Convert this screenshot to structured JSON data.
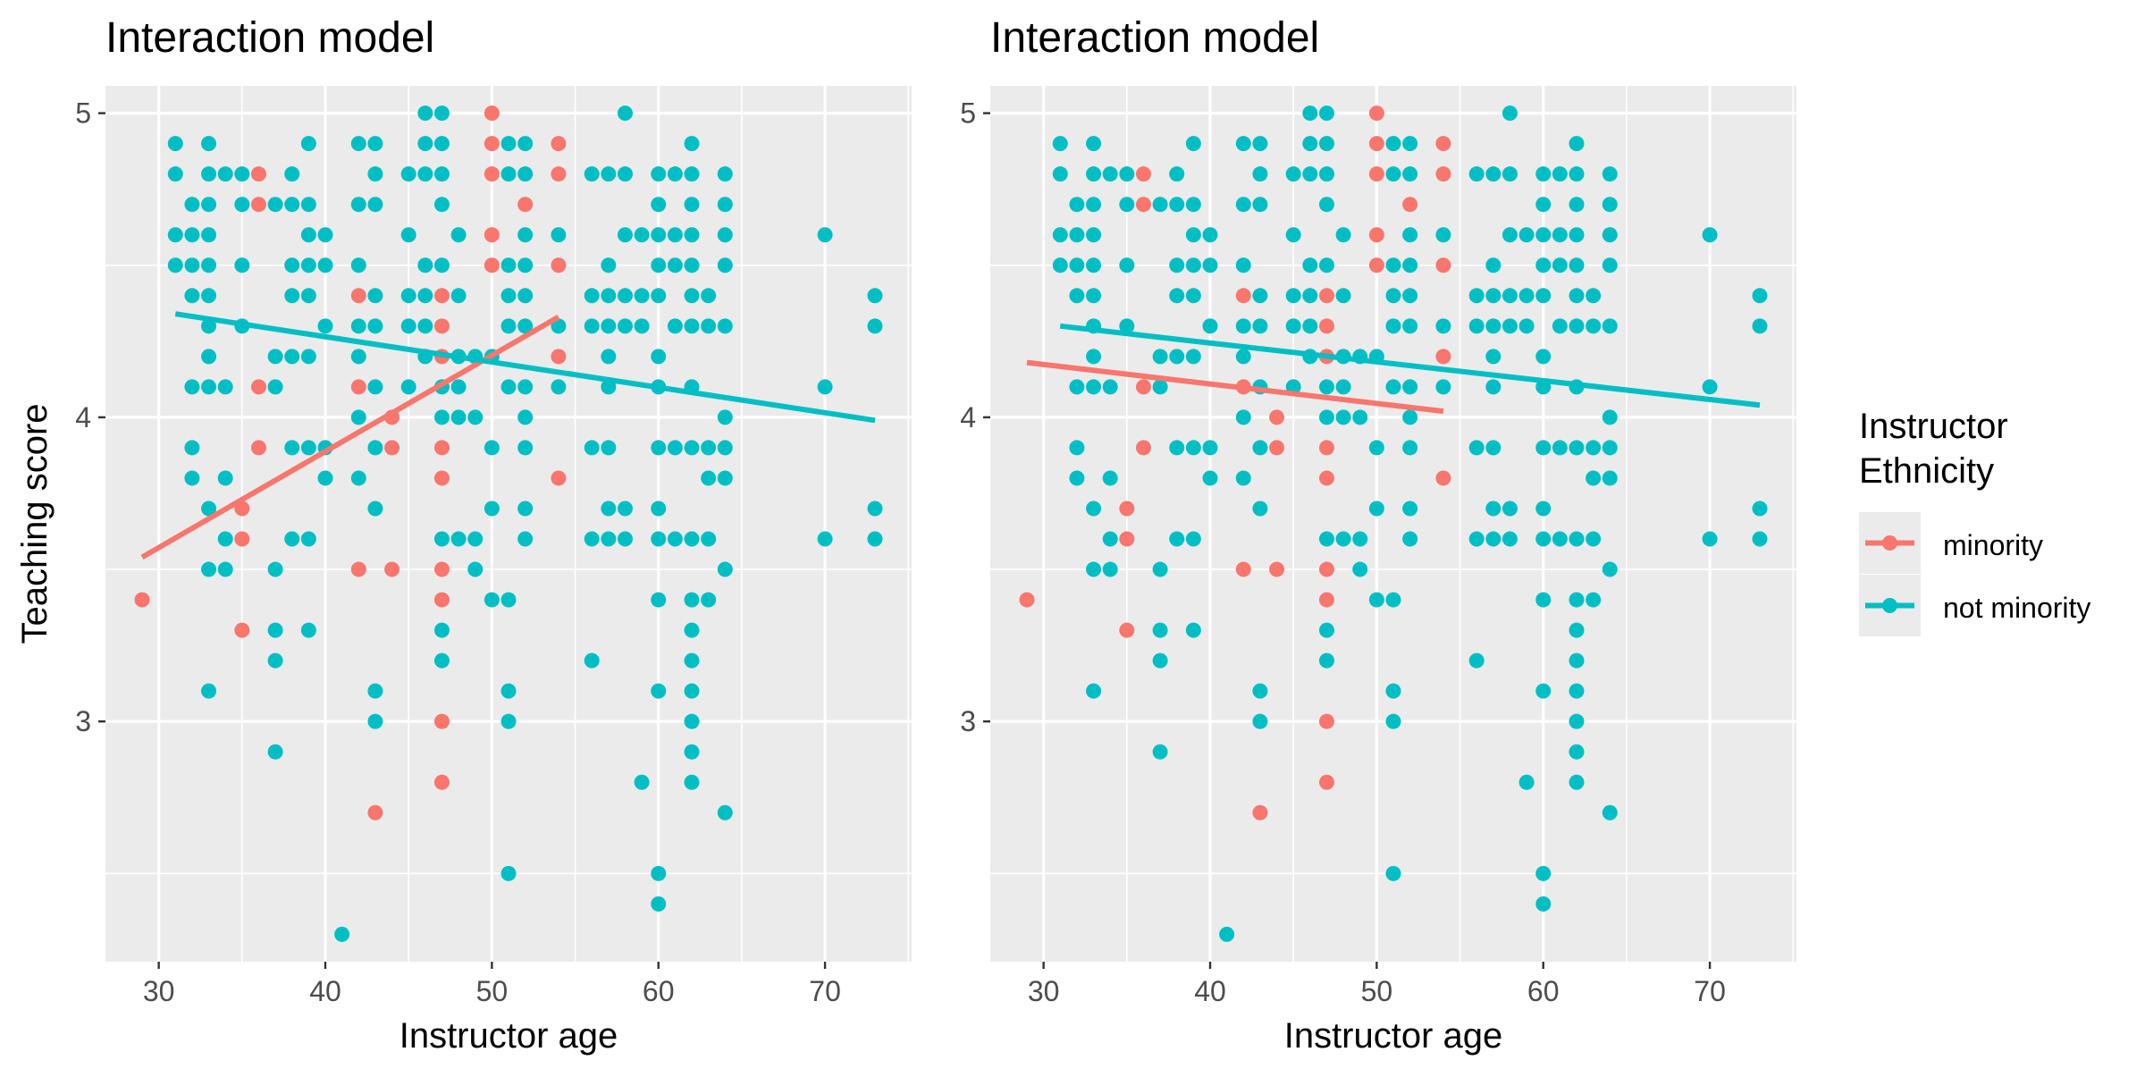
{
  "colors": {
    "minority": "#F8766D",
    "not_minority": "#00BFC4",
    "panel_bg": "#EBEBEB",
    "grid": "#FFFFFF",
    "text": "#000000",
    "tick_text": "#4D4D4D"
  },
  "legend": {
    "title_line1": "Instructor",
    "title_line2": "Ethnicity",
    "items": [
      {
        "key": "minority",
        "label": "minority"
      },
      {
        "key": "not_minority",
        "label": "not minority"
      }
    ]
  },
  "chart_data": [
    {
      "type": "scatter",
      "title": "Interaction model",
      "xlabel": "Instructor age",
      "ylabel": "Teaching score",
      "xlim": [
        26.8,
        75.2
      ],
      "ylim": [
        2.21,
        5.09
      ],
      "xticks": [
        30,
        40,
        50,
        60,
        70
      ],
      "yticks": [
        3,
        4,
        5
      ],
      "grid": true,
      "legend_position": "right",
      "series": [
        {
          "name": "minority",
          "color_key": "minority",
          "points": [
            [
              29,
              3.4
            ],
            [
              35,
              3.6
            ],
            [
              35,
              3.7
            ],
            [
              35,
              3.3
            ],
            [
              36,
              4.8
            ],
            [
              36,
              4.7
            ],
            [
              36,
              4.1
            ],
            [
              36,
              3.9
            ],
            [
              42,
              4.4
            ],
            [
              42,
              4.1
            ],
            [
              42,
              3.5
            ],
            [
              43,
              2.7
            ],
            [
              44,
              4.0
            ],
            [
              44,
              3.9
            ],
            [
              44,
              3.5
            ],
            [
              47,
              4.4
            ],
            [
              47,
              4.3
            ],
            [
              47,
              4.2
            ],
            [
              47,
              3.9
            ],
            [
              47,
              3.8
            ],
            [
              47,
              3.5
            ],
            [
              47,
              3.4
            ],
            [
              47,
              3.0
            ],
            [
              47,
              2.8
            ],
            [
              50,
              5.0
            ],
            [
              50,
              4.9
            ],
            [
              50,
              4.8
            ],
            [
              50,
              4.6
            ],
            [
              50,
              4.5
            ],
            [
              52,
              4.7
            ],
            [
              54,
              4.9
            ],
            [
              54,
              4.8
            ],
            [
              54,
              4.5
            ],
            [
              54,
              4.2
            ],
            [
              54,
              3.8
            ]
          ],
          "fit_line": [
            [
              29,
              3.54
            ],
            [
              54,
              4.33
            ]
          ]
        },
        {
          "name": "not minority",
          "color_key": "not_minority",
          "points": [
            [
              31,
              4.9
            ],
            [
              31,
              4.8
            ],
            [
              31,
              4.6
            ],
            [
              31,
              4.5
            ],
            [
              32,
              4.7
            ],
            [
              32,
              4.6
            ],
            [
              32,
              4.5
            ],
            [
              32,
              4.4
            ],
            [
              32,
              4.1
            ],
            [
              32,
              3.9
            ],
            [
              32,
              3.8
            ],
            [
              33,
              4.9
            ],
            [
              33,
              4.8
            ],
            [
              33,
              4.7
            ],
            [
              33,
              4.6
            ],
            [
              33,
              4.5
            ],
            [
              33,
              4.4
            ],
            [
              33,
              4.3
            ],
            [
              33,
              4.2
            ],
            [
              33,
              4.1
            ],
            [
              33,
              3.7
            ],
            [
              33,
              3.5
            ],
            [
              33,
              3.1
            ],
            [
              34,
              4.8
            ],
            [
              34,
              4.1
            ],
            [
              34,
              3.8
            ],
            [
              34,
              3.6
            ],
            [
              34,
              3.5
            ],
            [
              35,
              4.8
            ],
            [
              35,
              4.7
            ],
            [
              35,
              4.5
            ],
            [
              35,
              4.3
            ],
            [
              37,
              4.7
            ],
            [
              37,
              4.2
            ],
            [
              37,
              4.1
            ],
            [
              37,
              3.5
            ],
            [
              37,
              3.3
            ],
            [
              37,
              3.2
            ],
            [
              37,
              2.9
            ],
            [
              38,
              4.8
            ],
            [
              38,
              4.7
            ],
            [
              38,
              4.5
            ],
            [
              38,
              4.4
            ],
            [
              38,
              4.2
            ],
            [
              38,
              3.9
            ],
            [
              38,
              3.6
            ],
            [
              39,
              4.9
            ],
            [
              39,
              4.7
            ],
            [
              39,
              4.6
            ],
            [
              39,
              4.5
            ],
            [
              39,
              4.4
            ],
            [
              39,
              4.2
            ],
            [
              39,
              3.9
            ],
            [
              39,
              3.6
            ],
            [
              39,
              3.3
            ],
            [
              40,
              4.6
            ],
            [
              40,
              4.5
            ],
            [
              40,
              4.3
            ],
            [
              40,
              3.9
            ],
            [
              40,
              3.8
            ],
            [
              41,
              2.3
            ],
            [
              42,
              4.9
            ],
            [
              42,
              4.7
            ],
            [
              42,
              4.5
            ],
            [
              42,
              4.3
            ],
            [
              42,
              4.2
            ],
            [
              42,
              4.0
            ],
            [
              42,
              3.8
            ],
            [
              43,
              4.9
            ],
            [
              43,
              4.8
            ],
            [
              43,
              4.7
            ],
            [
              43,
              4.4
            ],
            [
              43,
              4.3
            ],
            [
              43,
              4.1
            ],
            [
              43,
              3.9
            ],
            [
              43,
              3.7
            ],
            [
              43,
              3.1
            ],
            [
              43,
              3.0
            ],
            [
              45,
              4.8
            ],
            [
              45,
              4.6
            ],
            [
              45,
              4.4
            ],
            [
              45,
              4.3
            ],
            [
              45,
              4.1
            ],
            [
              46,
              5.0
            ],
            [
              46,
              4.9
            ],
            [
              46,
              4.8
            ],
            [
              46,
              4.5
            ],
            [
              46,
              4.4
            ],
            [
              46,
              4.3
            ],
            [
              46,
              4.2
            ],
            [
              47,
              5.0
            ],
            [
              47,
              4.9
            ],
            [
              47,
              4.8
            ],
            [
              47,
              4.7
            ],
            [
              47,
              4.5
            ],
            [
              47,
              4.1
            ],
            [
              47,
              4.0
            ],
            [
              47,
              3.6
            ],
            [
              47,
              3.3
            ],
            [
              47,
              3.2
            ],
            [
              48,
              4.6
            ],
            [
              48,
              4.4
            ],
            [
              48,
              4.2
            ],
            [
              48,
              4.1
            ],
            [
              48,
              4.0
            ],
            [
              48,
              3.6
            ],
            [
              49,
              4.2
            ],
            [
              49,
              4.0
            ],
            [
              49,
              3.6
            ],
            [
              49,
              3.5
            ],
            [
              50,
              4.2
            ],
            [
              50,
              3.9
            ],
            [
              50,
              3.7
            ],
            [
              50,
              3.4
            ],
            [
              51,
              4.9
            ],
            [
              51,
              4.8
            ],
            [
              51,
              4.5
            ],
            [
              51,
              4.4
            ],
            [
              51,
              4.3
            ],
            [
              51,
              4.1
            ],
            [
              51,
              3.4
            ],
            [
              51,
              3.1
            ],
            [
              51,
              3.0
            ],
            [
              51,
              2.5
            ],
            [
              52,
              4.9
            ],
            [
              52,
              4.8
            ],
            [
              52,
              4.6
            ],
            [
              52,
              4.5
            ],
            [
              52,
              4.4
            ],
            [
              52,
              4.3
            ],
            [
              52,
              4.1
            ],
            [
              52,
              4.0
            ],
            [
              52,
              3.9
            ],
            [
              52,
              3.7
            ],
            [
              52,
              3.6
            ],
            [
              54,
              4.6
            ],
            [
              54,
              4.3
            ],
            [
              54,
              4.1
            ],
            [
              56,
              4.8
            ],
            [
              56,
              4.4
            ],
            [
              56,
              4.3
            ],
            [
              56,
              3.9
            ],
            [
              56,
              3.6
            ],
            [
              56,
              3.2
            ],
            [
              57,
              4.8
            ],
            [
              57,
              4.5
            ],
            [
              57,
              4.4
            ],
            [
              57,
              4.3
            ],
            [
              57,
              4.2
            ],
            [
              57,
              4.1
            ],
            [
              57,
              3.9
            ],
            [
              57,
              3.7
            ],
            [
              57,
              3.6
            ],
            [
              58,
              5.0
            ],
            [
              58,
              4.8
            ],
            [
              58,
              4.6
            ],
            [
              58,
              4.4
            ],
            [
              58,
              4.3
            ],
            [
              58,
              3.7
            ],
            [
              58,
              3.6
            ],
            [
              59,
              4.6
            ],
            [
              59,
              4.4
            ],
            [
              59,
              4.3
            ],
            [
              59,
              2.8
            ],
            [
              60,
              4.8
            ],
            [
              60,
              4.7
            ],
            [
              60,
              4.6
            ],
            [
              60,
              4.5
            ],
            [
              60,
              4.4
            ],
            [
              60,
              4.2
            ],
            [
              60,
              4.1
            ],
            [
              60,
              3.9
            ],
            [
              60,
              3.7
            ],
            [
              60,
              3.6
            ],
            [
              60,
              3.4
            ],
            [
              60,
              3.1
            ],
            [
              60,
              2.5
            ],
            [
              60,
              2.4
            ],
            [
              61,
              4.8
            ],
            [
              61,
              4.6
            ],
            [
              61,
              4.5
            ],
            [
              61,
              4.3
            ],
            [
              61,
              3.9
            ],
            [
              61,
              3.6
            ],
            [
              62,
              4.9
            ],
            [
              62,
              4.8
            ],
            [
              62,
              4.7
            ],
            [
              62,
              4.6
            ],
            [
              62,
              4.5
            ],
            [
              62,
              4.4
            ],
            [
              62,
              4.3
            ],
            [
              62,
              4.1
            ],
            [
              62,
              3.9
            ],
            [
              62,
              3.6
            ],
            [
              62,
              3.4
            ],
            [
              62,
              3.3
            ],
            [
              62,
              3.2
            ],
            [
              62,
              3.1
            ],
            [
              62,
              3.0
            ],
            [
              62,
              2.9
            ],
            [
              62,
              2.8
            ],
            [
              63,
              4.4
            ],
            [
              63,
              4.3
            ],
            [
              63,
              3.9
            ],
            [
              63,
              3.8
            ],
            [
              63,
              3.6
            ],
            [
              63,
              3.4
            ],
            [
              64,
              4.8
            ],
            [
              64,
              4.7
            ],
            [
              64,
              4.6
            ],
            [
              64,
              4.5
            ],
            [
              64,
              4.3
            ],
            [
              64,
              4.0
            ],
            [
              64,
              3.9
            ],
            [
              64,
              3.8
            ],
            [
              64,
              3.5
            ],
            [
              64,
              2.7
            ],
            [
              70,
              4.6
            ],
            [
              70,
              4.1
            ],
            [
              70,
              3.6
            ],
            [
              73,
              4.4
            ],
            [
              73,
              4.3
            ],
            [
              73,
              3.7
            ],
            [
              73,
              3.6
            ]
          ],
          "fit_line": [
            [
              31,
              4.34
            ],
            [
              73,
              3.99
            ]
          ]
        }
      ]
    },
    {
      "type": "scatter",
      "title": "Interaction model",
      "xlabel": "Instructor age",
      "ylabel": "",
      "xlim": [
        26.8,
        75.2
      ],
      "ylim": [
        2.21,
        5.09
      ],
      "xticks": [
        30,
        40,
        50,
        60,
        70
      ],
      "yticks": [
        3,
        4,
        5
      ],
      "grid": true,
      "legend_position": "right",
      "series": [
        {
          "name": "minority",
          "color_key": "minority",
          "points": "same as first panel",
          "fit_line": [
            [
              29,
              4.18
            ],
            [
              54,
              4.02
            ]
          ]
        },
        {
          "name": "not minority",
          "color_key": "not_minority",
          "points": "same as first panel",
          "fit_line": [
            [
              31,
              4.3
            ],
            [
              73,
              4.04
            ]
          ]
        }
      ]
    }
  ]
}
